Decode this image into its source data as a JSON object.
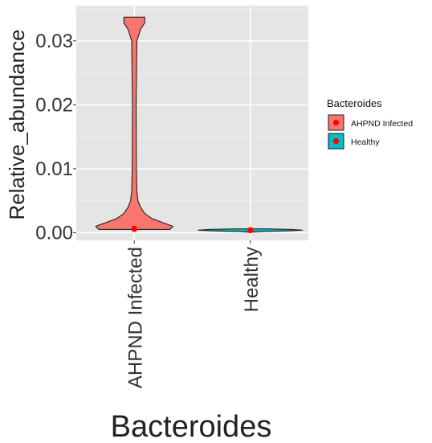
{
  "chart_data": {
    "type": "violin",
    "title": "",
    "xlabel": "Bacteroides",
    "ylabel": "Relative_abundance",
    "categories": [
      "AHPND Infected",
      "Healthy"
    ],
    "ylim": [
      -0.0012,
      0.0355
    ],
    "y_ticks": [
      0.0,
      0.01,
      0.02,
      0.03
    ],
    "y_tick_labels": [
      "0.00",
      "0.01",
      "0.02",
      "0.03"
    ],
    "grid": true,
    "series": [
      {
        "category": "AHPND Infected",
        "color": "#F8766D",
        "min": 0.0005,
        "max": 0.0337,
        "mean": 0.0006,
        "profile": [
          [
            0.0005,
            0.68
          ],
          [
            0.001,
            0.74
          ],
          [
            0.0016,
            0.54
          ],
          [
            0.0022,
            0.34
          ],
          [
            0.003,
            0.2
          ],
          [
            0.004,
            0.12
          ],
          [
            0.005,
            0.07
          ],
          [
            0.0065,
            0.05
          ],
          [
            0.01,
            0.04
          ],
          [
            0.02,
            0.035
          ],
          [
            0.03,
            0.05
          ],
          [
            0.0318,
            0.12
          ],
          [
            0.0328,
            0.2
          ],
          [
            0.0337,
            0.2
          ]
        ]
      },
      {
        "category": "Healthy",
        "color": "#00BFC4",
        "min": 0.0001,
        "max": 0.0006,
        "mean": 0.0004,
        "profile": [
          [
            0.0001,
            0.05
          ],
          [
            0.0002,
            0.25
          ],
          [
            0.0003,
            0.75
          ],
          [
            0.0004,
            1.0
          ],
          [
            0.0005,
            0.8
          ],
          [
            0.0006,
            0.3
          ]
        ]
      }
    ],
    "legend": {
      "title": "Bacteroides",
      "position": "right",
      "entries": [
        "AHPND Infected",
        "Healthy"
      ]
    }
  }
}
